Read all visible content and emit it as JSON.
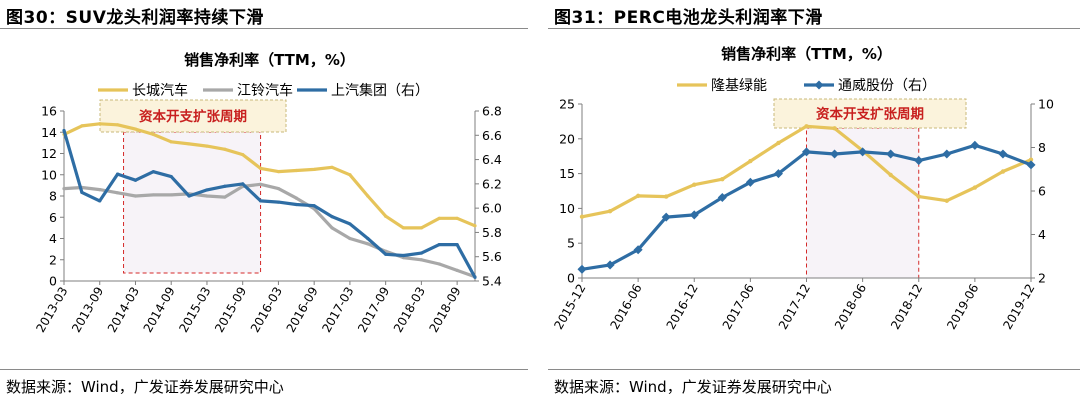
{
  "figures": [
    {
      "title": "图30：SUV龙头利润率持续下滑",
      "source": "数据来源：Wind，广发证券发展研究中心"
    },
    {
      "title": "图31：PERC电池龙头利润率下滑",
      "source": "数据来源：Wind，广发证券发展研究中心"
    }
  ],
  "chart_data": [
    {
      "type": "line",
      "title": "销售净利率（TTM，%）",
      "annotation": "资本开支扩张周期",
      "shaded_period": [
        2014.0,
        2015.917
      ],
      "xlim": [
        2013.167,
        2018.917
      ],
      "x_tick_labels": [
        "2013-03",
        "2013-09",
        "2014-03",
        "2014-09",
        "2015-03",
        "2015-09",
        "2016-03",
        "2016-09",
        "2017-03",
        "2017-09",
        "2018-03",
        "2018-09"
      ],
      "x_tick_values": [
        2013.167,
        2013.667,
        2014.167,
        2014.667,
        2015.167,
        2015.667,
        2016.167,
        2016.667,
        2017.167,
        2017.667,
        2018.167,
        2018.667
      ],
      "ylim_left": [
        0,
        16
      ],
      "ylim_right": [
        5.4,
        6.8
      ],
      "y_ticks_left": [
        0,
        2,
        4,
        6,
        8,
        10,
        12,
        14,
        16
      ],
      "y_ticks_right": [
        5.4,
        5.6,
        5.8,
        6.0,
        6.2,
        6.4,
        6.6,
        6.8
      ],
      "legend": [
        "长城汽车",
        "江铃汽车",
        "上汽集团（右）"
      ],
      "series": [
        {
          "name": "长城汽车",
          "axis": "left",
          "color": "#e6c45a",
          "x": [
            2013.167,
            2013.417,
            2013.667,
            2013.917,
            2014.167,
            2014.417,
            2014.667,
            2014.917,
            2015.167,
            2015.417,
            2015.667,
            2015.917,
            2016.167,
            2016.417,
            2016.667,
            2016.917,
            2017.167,
            2017.417,
            2017.667,
            2017.917,
            2018.167,
            2018.417,
            2018.667,
            2018.917
          ],
          "values": [
            13.8,
            14.6,
            14.8,
            14.7,
            14.3,
            13.8,
            13.1,
            12.9,
            12.7,
            12.4,
            11.9,
            10.6,
            10.3,
            10.4,
            10.5,
            10.7,
            10.0,
            8.0,
            6.1,
            5.0,
            5.0,
            5.9,
            5.9,
            5.2
          ]
        },
        {
          "name": "江铃汽车",
          "axis": "left",
          "color": "#a8a8a8",
          "x": [
            2013.167,
            2013.417,
            2013.667,
            2013.917,
            2014.167,
            2014.417,
            2014.667,
            2014.917,
            2015.167,
            2015.417,
            2015.667,
            2015.917,
            2016.167,
            2016.417,
            2016.667,
            2016.917,
            2017.167,
            2017.417,
            2017.667,
            2017.917,
            2018.167,
            2018.417,
            2018.667,
            2018.917
          ],
          "values": [
            8.7,
            8.8,
            8.6,
            8.3,
            8.0,
            8.1,
            8.1,
            8.2,
            8.0,
            7.9,
            8.9,
            9.1,
            8.7,
            7.8,
            6.8,
            5.0,
            4.0,
            3.5,
            2.8,
            2.2,
            2.0,
            1.6,
            1.0,
            0.4
          ]
        },
        {
          "name": "上汽集团（右）",
          "axis": "right",
          "color": "#2e6da4",
          "x": [
            2013.167,
            2013.417,
            2013.667,
            2013.917,
            2014.167,
            2014.417,
            2014.667,
            2014.917,
            2015.167,
            2015.417,
            2015.667,
            2015.917,
            2016.167,
            2016.417,
            2016.667,
            2016.917,
            2017.167,
            2017.417,
            2017.667,
            2017.917,
            2018.167,
            2018.417,
            2018.667,
            2018.917
          ],
          "values": [
            6.64,
            6.13,
            6.06,
            6.28,
            6.23,
            6.3,
            6.26,
            6.1,
            6.15,
            6.18,
            6.2,
            6.06,
            6.05,
            6.03,
            6.02,
            5.93,
            5.87,
            5.75,
            5.62,
            5.61,
            5.63,
            5.7,
            5.7,
            5.43
          ]
        }
      ]
    },
    {
      "type": "line",
      "title": "销售净利率（TTM，%）",
      "annotation": "资本开支扩张周期",
      "shaded_period": [
        2017.917,
        2018.917
      ],
      "xlim": [
        2015.917,
        2019.917
      ],
      "x_tick_labels": [
        "2015-12",
        "2016-06",
        "2016-12",
        "2017-06",
        "2017-12",
        "2018-06",
        "2018-12",
        "2019-06",
        "2019-12"
      ],
      "x_tick_values": [
        2015.917,
        2016.417,
        2016.917,
        2017.417,
        2017.917,
        2018.417,
        2018.917,
        2019.417,
        2019.917
      ],
      "ylim_left": [
        0,
        25
      ],
      "ylim_right": [
        2,
        10
      ],
      "y_ticks_left": [
        0,
        5,
        10,
        15,
        20,
        25
      ],
      "y_ticks_right": [
        2,
        4,
        6,
        8,
        10
      ],
      "legend": [
        "隆基绿能",
        "通威股份（右）"
      ],
      "series": [
        {
          "name": "隆基绿能",
          "axis": "left",
          "color": "#e6c45a",
          "x": [
            2015.917,
            2016.167,
            2016.417,
            2016.667,
            2016.917,
            2017.167,
            2017.417,
            2017.667,
            2017.917,
            2018.167,
            2018.417,
            2018.667,
            2018.917,
            2019.167,
            2019.417,
            2019.667,
            2019.917
          ],
          "values": [
            8.8,
            9.6,
            11.8,
            11.7,
            13.4,
            14.2,
            16.8,
            19.4,
            21.8,
            21.5,
            18.3,
            14.8,
            11.7,
            11.1,
            13.0,
            15.3,
            17.0
          ]
        },
        {
          "name": "通威股份（右）",
          "axis": "right",
          "color": "#2e6da4",
          "x": [
            2015.917,
            2016.167,
            2016.417,
            2016.667,
            2016.917,
            2017.167,
            2017.417,
            2017.667,
            2017.917,
            2018.167,
            2018.417,
            2018.667,
            2018.917,
            2019.167,
            2019.417,
            2019.667,
            2019.917
          ],
          "values": [
            2.4,
            2.6,
            3.3,
            4.8,
            4.9,
            5.7,
            6.4,
            6.8,
            7.8,
            7.7,
            7.8,
            7.7,
            7.4,
            7.7,
            8.1,
            7.7,
            7.2
          ]
        }
      ]
    }
  ]
}
